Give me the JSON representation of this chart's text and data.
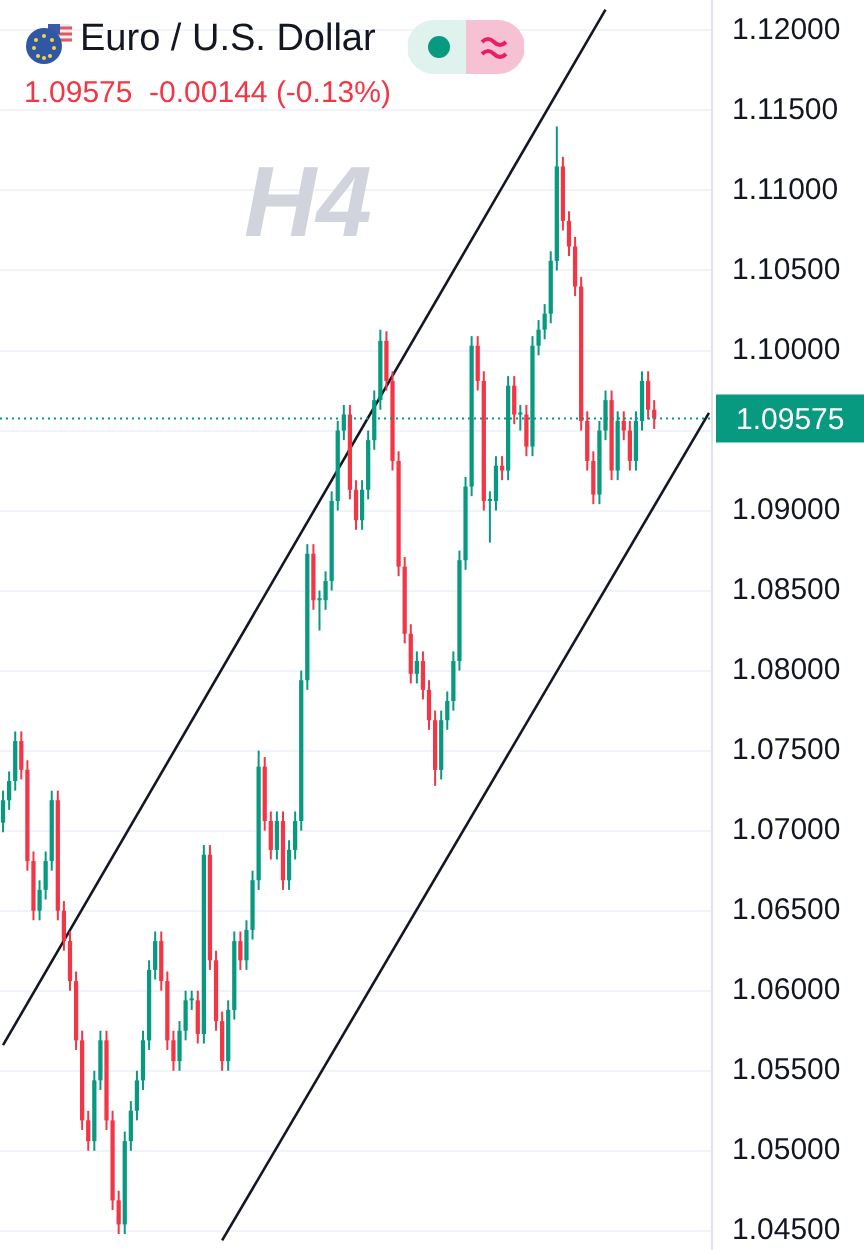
{
  "chart_data": {
    "type": "candlestick",
    "title": "Euro / U.S. Dollar",
    "subtitle": "1.09575  -0.00144 (-0.13%)",
    "annotations": [
      "H4"
    ],
    "categories": [
      null,
      null,
      null,
      null,
      null,
      null,
      null,
      null,
      null,
      null,
      null,
      null,
      null,
      null,
      null,
      null,
      null,
      null,
      null,
      null,
      null,
      null,
      null,
      null,
      null,
      null,
      null,
      null,
      null,
      null,
      null,
      null,
      null,
      null,
      null,
      null,
      null,
      null,
      null,
      null,
      null,
      null,
      null,
      null,
      null,
      null,
      null,
      null,
      null,
      null,
      null,
      null,
      null,
      null,
      null,
      null,
      null,
      null,
      null,
      null,
      null,
      null,
      null,
      null,
      null,
      null,
      null,
      null,
      null,
      null,
      null,
      null,
      null,
      null,
      null,
      null,
      null,
      null,
      null,
      null,
      null,
      null,
      null,
      null,
      null,
      null,
      null,
      null,
      null,
      null,
      null,
      null,
      null,
      null,
      null,
      null,
      null,
      null,
      null,
      null,
      null,
      null,
      null,
      null,
      null,
      null,
      null,
      null,
      null,
      null,
      null,
      null,
      null,
      null,
      null,
      null,
      null
    ],
    "ohlc": [
      [
        1.0705,
        1.0725,
        1.0699,
        1.0719
      ],
      [
        1.0719,
        1.0737,
        1.0713,
        1.0731
      ],
      [
        1.0731,
        1.0762,
        1.0725,
        1.0756
      ],
      [
        1.0756,
        1.0762,
        1.0732,
        1.0738
      ],
      [
        1.0738,
        1.0744,
        1.0675,
        1.0681
      ],
      [
        1.0681,
        1.0687,
        1.0644,
        1.065
      ],
      [
        1.065,
        1.0669,
        1.0644,
        1.0663
      ],
      [
        1.0663,
        1.0687,
        1.0657,
        1.0681
      ],
      [
        1.0681,
        1.0725,
        1.0675,
        1.0719
      ],
      [
        1.0719,
        1.0725,
        1.0644,
        1.065
      ],
      [
        1.065,
        1.0656,
        1.0625,
        1.0631
      ],
      [
        1.0631,
        1.0637,
        1.06,
        1.0606
      ],
      [
        1.0606,
        1.0612,
        1.0563,
        1.0569
      ],
      [
        1.0569,
        1.0575,
        1.0513,
        1.0519
      ],
      [
        1.0519,
        1.0525,
        1.05,
        1.0506
      ],
      [
        1.0506,
        1.055,
        1.05,
        1.0544
      ],
      [
        1.0544,
        1.0575,
        1.0538,
        1.0569
      ],
      [
        1.0569,
        1.0575,
        1.0513,
        1.0519
      ],
      [
        1.0519,
        1.0525,
        1.0463,
        1.0469
      ],
      [
        1.0469,
        1.0475,
        1.0448,
        1.0454
      ],
      [
        1.0454,
        1.0512,
        1.0448,
        1.0506
      ],
      [
        1.0506,
        1.0531,
        1.05,
        1.0525
      ],
      [
        1.0525,
        1.055,
        1.0519,
        1.0544
      ],
      [
        1.0544,
        1.0575,
        1.0538,
        1.0569
      ],
      [
        1.0569,
        1.0619,
        1.0563,
        1.0613
      ],
      [
        1.0613,
        1.0637,
        1.0607,
        1.0631
      ],
      [
        1.0631,
        1.0637,
        1.06,
        1.0606
      ],
      [
        1.0606,
        1.0612,
        1.0563,
        1.0569
      ],
      [
        1.0569,
        1.0575,
        1.055,
        1.0556
      ],
      [
        1.0556,
        1.0581,
        1.055,
        1.0575
      ],
      [
        1.0575,
        1.06,
        1.0569,
        1.0594
      ],
      [
        1.0594,
        1.06,
        1.0588,
        1.0594
      ],
      [
        1.0594,
        1.06,
        1.0567,
        1.0573
      ],
      [
        1.0573,
        1.0691,
        1.0567,
        1.0685
      ],
      [
        1.0685,
        1.0691,
        1.0613,
        1.0619
      ],
      [
        1.0619,
        1.0625,
        1.0575,
        1.0581
      ],
      [
        1.0581,
        1.0587,
        1.055,
        1.0556
      ],
      [
        1.0556,
        1.0594,
        1.055,
        1.0588
      ],
      [
        1.0588,
        1.0637,
        1.0582,
        1.0631
      ],
      [
        1.0631,
        1.0637,
        1.0613,
        1.0619
      ],
      [
        1.0619,
        1.0644,
        1.0613,
        1.0638
      ],
      [
        1.0638,
        1.0675,
        1.0632,
        1.0669
      ],
      [
        1.0669,
        1.075,
        1.0663,
        1.074
      ],
      [
        1.074,
        1.0746,
        1.07,
        1.0706
      ],
      [
        1.0706,
        1.0712,
        1.0682,
        1.0688
      ],
      [
        1.0688,
        1.0712,
        1.0682,
        1.0706
      ],
      [
        1.0706,
        1.0712,
        1.0663,
        1.0669
      ],
      [
        1.0669,
        1.0694,
        1.0663,
        1.0688
      ],
      [
        1.0688,
        1.0712,
        1.0682,
        1.0706
      ],
      [
        1.0706,
        1.08,
        1.07,
        1.0794
      ],
      [
        1.0794,
        1.0879,
        1.0788,
        1.0873
      ],
      [
        1.0873,
        1.0879,
        1.0838,
        1.0844
      ],
      [
        1.0844,
        1.085,
        1.0825,
        1.0844
      ],
      [
        1.0844,
        1.0862,
        1.0838,
        1.0856
      ],
      [
        1.0856,
        1.0912,
        1.085,
        1.0906
      ],
      [
        1.0906,
        1.0956,
        1.09,
        1.095
      ],
      [
        1.095,
        1.0966,
        1.0944,
        1.096
      ],
      [
        1.096,
        1.0966,
        1.0907,
        1.0913
      ],
      [
        1.0913,
        1.0919,
        1.0888,
        1.0894
      ],
      [
        1.0894,
        1.0919,
        1.0888,
        1.0913
      ],
      [
        1.0913,
        1.095,
        1.0907,
        1.0944
      ],
      [
        1.0944,
        1.0975,
        1.0938,
        1.0969
      ],
      [
        1.0969,
        1.1013,
        1.0963,
        1.1006
      ],
      [
        1.1006,
        1.1012,
        1.0975,
        1.0981
      ],
      [
        1.0981,
        1.0987,
        1.0925,
        1.0931
      ],
      [
        1.0931,
        1.0937,
        1.0859,
        1.0865
      ],
      [
        1.0865,
        1.0871,
        1.0817,
        1.0823
      ],
      [
        1.0823,
        1.0829,
        1.0792,
        1.0798
      ],
      [
        1.0798,
        1.0812,
        1.0792,
        1.0806
      ],
      [
        1.0806,
        1.0812,
        1.0782,
        1.0788
      ],
      [
        1.0788,
        1.0794,
        1.0763,
        1.0769
      ],
      [
        1.0769,
        1.0775,
        1.0728,
        1.0738
      ],
      [
        1.0738,
        1.0775,
        1.0732,
        1.0769
      ],
      [
        1.0769,
        1.0787,
        1.0763,
        1.0781
      ],
      [
        1.0781,
        1.0812,
        1.0775,
        1.0806
      ],
      [
        1.0806,
        1.0875,
        1.08,
        1.0869
      ],
      [
        1.0869,
        1.0921,
        1.0863,
        1.0915
      ],
      [
        1.0915,
        1.1009,
        1.0909,
        1.1003
      ],
      [
        1.1003,
        1.1009,
        1.0975,
        1.0981
      ],
      [
        1.0981,
        1.0987,
        1.09,
        1.0906
      ],
      [
        1.0906,
        1.0912,
        1.088,
        1.0906
      ],
      [
        1.0906,
        1.0934,
        1.09,
        1.0928
      ],
      [
        1.0928,
        1.0934,
        1.0919,
        1.0925
      ],
      [
        1.0925,
        1.0984,
        1.0919,
        1.0978
      ],
      [
        1.0978,
        1.0984,
        1.0954,
        1.096
      ],
      [
        1.096,
        1.0966,
        1.095,
        1.096
      ],
      [
        1.096,
        1.0966,
        1.0934,
        1.094
      ],
      [
        1.094,
        1.1009,
        1.0934,
        1.1003
      ],
      [
        1.1003,
        1.1019,
        1.0997,
        1.1013
      ],
      [
        1.1013,
        1.1029,
        1.1007,
        1.1023
      ],
      [
        1.1023,
        1.1062,
        1.1017,
        1.1056
      ],
      [
        1.1056,
        1.114,
        1.105,
        1.1115
      ],
      [
        1.1115,
        1.1121,
        1.1075,
        1.1081
      ],
      [
        1.1081,
        1.1087,
        1.1059,
        1.1065
      ],
      [
        1.1065,
        1.1071,
        1.1034,
        1.104
      ],
      [
        1.104,
        1.1046,
        1.095,
        1.0956
      ],
      [
        1.0956,
        1.0962,
        1.0925,
        1.0931
      ],
      [
        1.0931,
        1.0937,
        1.0904,
        1.091
      ],
      [
        1.091,
        1.0956,
        1.0904,
        1.095
      ],
      [
        1.095,
        1.0975,
        1.0944,
        1.0969
      ],
      [
        1.0969,
        1.0975,
        1.0919,
        1.0925
      ],
      [
        1.0925,
        1.0962,
        1.0919,
        1.0956
      ],
      [
        1.0956,
        1.0962,
        1.0944,
        1.095
      ],
      [
        1.095,
        1.0956,
        1.0925,
        1.0931
      ],
      [
        1.0931,
        1.0962,
        1.0925,
        1.0956
      ],
      [
        1.0956,
        1.0987,
        1.095,
        1.0981
      ],
      [
        1.0981,
        1.0987,
        1.0957,
        1.0963
      ],
      [
        1.0963,
        1.0969,
        1.0951,
        1.09575
      ],
      null,
      null,
      null,
      null,
      null,
      null,
      null,
      null,
      null
    ],
    "series": [
      {
        "type": "line",
        "color": "#131722",
        "values": [
          1.0566,
          null,
          null,
          null,
          null,
          null,
          null,
          null,
          null,
          null,
          null,
          null,
          null,
          null,
          null,
          null,
          null,
          null,
          null,
          null,
          null,
          null,
          null,
          null,
          null,
          null,
          null,
          null,
          null,
          null,
          null,
          null,
          null,
          null,
          null,
          null,
          null,
          null,
          null,
          null,
          null,
          null,
          null,
          null,
          null,
          null,
          null,
          null,
          null,
          null,
          null,
          null,
          null,
          null,
          null,
          null,
          null,
          null,
          null,
          null,
          null,
          null,
          null,
          null,
          null,
          null,
          null,
          null,
          null,
          null,
          null,
          null,
          null,
          null,
          null,
          null,
          null,
          null,
          null,
          null,
          null,
          null,
          null,
          null,
          null,
          null,
          null,
          null,
          null,
          null,
          null,
          null,
          null,
          null,
          null,
          null,
          null,
          null,
          null,
          1.1213,
          null,
          null,
          null,
          null,
          null,
          null,
          null,
          null,
          null,
          null,
          null,
          null,
          null,
          null,
          null,
          null,
          null
        ]
      },
      {
        "type": "line",
        "color": "#131722",
        "values": [
          null,
          null,
          null,
          null,
          null,
          null,
          null,
          null,
          null,
          null,
          null,
          null,
          null,
          null,
          null,
          null,
          null,
          null,
          null,
          null,
          null,
          null,
          null,
          null,
          null,
          null,
          null,
          null,
          null,
          null,
          null,
          null,
          null,
          null,
          null,
          null,
          1.0444,
          null,
          null,
          null,
          null,
          null,
          null,
          null,
          null,
          null,
          null,
          null,
          null,
          null,
          null,
          null,
          null,
          null,
          null,
          null,
          null,
          null,
          null,
          null,
          null,
          null,
          null,
          null,
          null,
          null,
          null,
          null,
          null,
          null,
          null,
          null,
          null,
          null,
          null,
          null,
          null,
          null,
          null,
          null,
          null,
          null,
          null,
          null,
          null,
          null,
          null,
          null,
          null,
          null,
          null,
          null,
          null,
          null,
          null,
          null,
          null,
          null,
          null,
          null,
          null,
          null,
          null,
          null,
          null,
          null,
          null,
          null,
          null,
          null,
          null,
          null,
          null,
          null,
          null,
          null,
          1.0961
        ]
      }
    ],
    "ylim": [
      1.0438,
      1.1219
    ],
    "yticks": [
      {
        "value": 1.045,
        "label": "1.04500"
      },
      {
        "value": 1.05,
        "label": "1.05000"
      },
      {
        "value": 1.055,
        "label": "1.05500"
      },
      {
        "value": 1.06,
        "label": "1.06000"
      },
      {
        "value": 1.065,
        "label": "1.06500"
      },
      {
        "value": 1.07,
        "label": "1.07000"
      },
      {
        "value": 1.075,
        "label": "1.07500"
      },
      {
        "value": 1.08,
        "label": "1.08000"
      },
      {
        "value": 1.085,
        "label": "1.08500"
      },
      {
        "value": 1.09,
        "label": "1.09000"
      },
      {
        "value": 1.095,
        "label": null
      },
      {
        "value": 1.1,
        "label": "1.10000"
      },
      {
        "value": 1.105,
        "label": "1.10500"
      },
      {
        "value": 1.11,
        "label": "1.11000"
      },
      {
        "value": 1.115,
        "label": "1.11500"
      },
      {
        "value": 1.12,
        "label": "1.12000"
      }
    ],
    "tick_labels": "y",
    "grid": "y",
    "ref_lines": [
      {
        "axis": "y",
        "value": 1.09575,
        "label": "1.09575",
        "color": "#089981",
        "line_style": "dotted"
      }
    ]
  }
}
